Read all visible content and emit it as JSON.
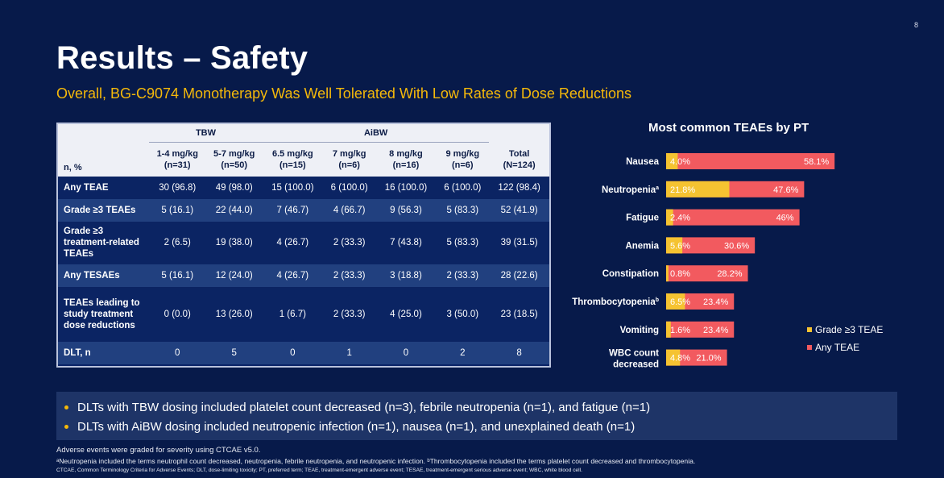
{
  "slide": {
    "page_number": "8",
    "title": "Results – Safety",
    "subtitle": "Overall, BG-C9074 Monotherapy Was Well Tolerated With Low Rates of Dose Reductions"
  },
  "table": {
    "group_headers": {
      "tbw": "TBW",
      "aibw": "AiBW"
    },
    "row_label_header": "n, %",
    "columns": [
      {
        "line1": "1-4 mg/kg",
        "line2": "(n=31)"
      },
      {
        "line1": "5-7 mg/kg",
        "line2": "(n=50)"
      },
      {
        "line1": "6.5 mg/kg",
        "line2": "(n=15)"
      },
      {
        "line1": "7 mg/kg",
        "line2": "(n=6)"
      },
      {
        "line1": "8 mg/kg",
        "line2": "(n=16)"
      },
      {
        "line1": "9 mg/kg",
        "line2": "(n=6)"
      },
      {
        "line1": "Total",
        "line2": "(N=124)"
      }
    ],
    "rows": [
      {
        "label": "Any TEAE",
        "cells": [
          "30 (96.8)",
          "49 (98.0)",
          "15 (100.0)",
          "6 (100.0)",
          "16 (100.0)",
          "6 (100.0)",
          "122 (98.4)"
        ]
      },
      {
        "label": "Grade ≥3 TEAEs",
        "cells": [
          "5 (16.1)",
          "22 (44.0)",
          "7 (46.7)",
          "4 (66.7)",
          "9 (56.3)",
          "5 (83.3)",
          "52 (41.9)"
        ]
      },
      {
        "label": "Grade ≥3 treatment-related TEAEs",
        "cells": [
          "2 (6.5)",
          "19 (38.0)",
          "4 (26.7)",
          "2 (33.3)",
          "7 (43.8)",
          "5 (83.3)",
          "39 (31.5)"
        ]
      },
      {
        "label": "Any TESAEs",
        "cells": [
          "5 (16.1)",
          "12 (24.0)",
          "4 (26.7)",
          "2 (33.3)",
          "3 (18.8)",
          "2 (33.3)",
          "28 (22.6)"
        ]
      },
      {
        "label": "TEAEs leading to study treatment dose reductions",
        "cells": [
          "0 (0.0)",
          "13 (26.0)",
          "1 (6.7)",
          "2 (33.3)",
          "4 (25.0)",
          "3 (50.0)",
          "23 (18.5)"
        ]
      },
      {
        "label": "DLT, n",
        "cells": [
          "0",
          "5",
          "0",
          "1",
          "0",
          "2",
          "8"
        ]
      }
    ]
  },
  "chart_data": {
    "type": "bar",
    "orientation": "horizontal",
    "title": "Most common TEAEs by PT",
    "categories": [
      "Nausea",
      "Neutropenia",
      "Fatigue",
      "Anemia",
      "Constipation",
      "Thrombocytopenia",
      "Vomiting",
      "WBC count decreased"
    ],
    "category_superscripts": [
      "",
      "a",
      "",
      "",
      "",
      "b",
      "",
      ""
    ],
    "series": [
      {
        "name": "Grade ≥3 TEAE",
        "color": "#f5c331",
        "values": [
          4.0,
          21.8,
          2.4,
          5.6,
          0.8,
          6.5,
          1.6,
          4.8
        ],
        "labels": [
          "4.0%",
          "21.8%",
          "2.4%",
          "5.6%",
          "0.8%",
          "6.5%",
          "1.6%",
          "4.8%"
        ]
      },
      {
        "name": "Any TEAE",
        "color": "#f25a5f",
        "values": [
          58.1,
          47.6,
          46,
          30.6,
          28.2,
          23.4,
          23.4,
          21.0
        ],
        "labels": [
          "58.1%",
          "47.6%",
          "46%",
          "30.6%",
          "28.2%",
          "23.4%",
          "23.4%",
          "21.0%"
        ]
      }
    ],
    "xlim": [
      0,
      60
    ],
    "legend_position": "bottom-right",
    "grid": false
  },
  "legend": {
    "grade3": "Grade ≥3 TEAE",
    "any": "Any TEAE"
  },
  "bullets": [
    "DLTs with TBW dosing included platelet count decreased (n=3), febrile neutropenia (n=1), and fatigue (n=1)",
    "DLTs with AiBW dosing included neutropenic infection (n=1), nausea (n=1), and unexplained death (n=1)"
  ],
  "footnotes": {
    "line1": "Adverse events were graded for severity using CTCAE v5.0.",
    "line2": "ᵃNeutropenia included the terms neutrophil count decreased, neutropenia, febrile neutropenia, and neutropenic infection. ᵇThrombocytopenia included the terms platelet count decreased and thrombocytopenia.",
    "line3": "CTCAE, Common Terminology Criteria for Adverse Events; DLT, dose-limiting toxicity; PT, preferred term; TEAE, treatment-emergent adverse event; TESAE, treatment-emergent serious adverse event; WBC, white blood cell."
  },
  "colors": {
    "background": "#071a4a",
    "accent": "#f5b90a",
    "grade3": "#f5c331",
    "any_teae": "#f25a5f"
  }
}
